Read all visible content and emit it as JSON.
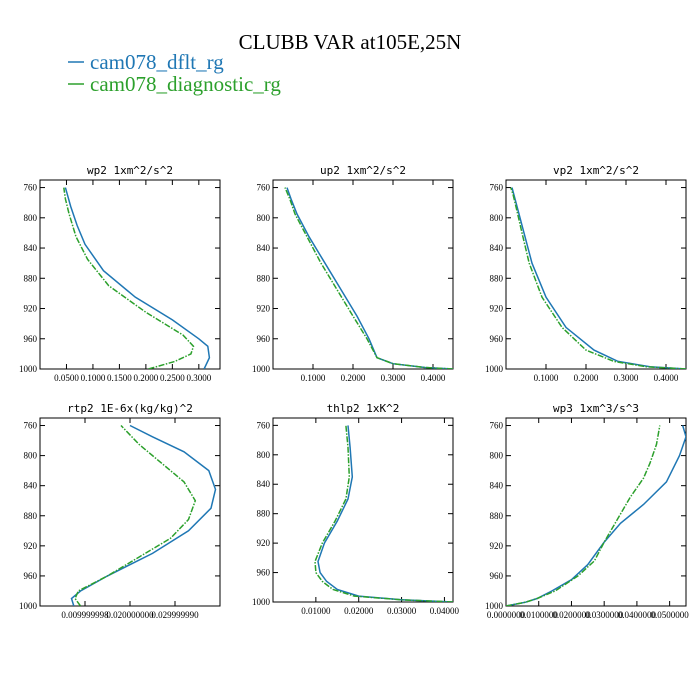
{
  "figure": {
    "title": "CLUBB VAR at105E,25N",
    "legend": [
      {
        "label": "cam078_dflt_rg",
        "color": "#1f77b4"
      },
      {
        "label": "cam078_diagnostic_rg",
        "color": "#2ca02c"
      }
    ]
  },
  "chart_data": [
    {
      "type": "line",
      "title": "wp2  1xm^2/s^2",
      "xlim": [
        0.0,
        0.34
      ],
      "ylim": [
        1000,
        750
      ],
      "yticks": [
        1000,
        960,
        920,
        880,
        840,
        800,
        760
      ],
      "yticklabels": [
        "1000",
        "960",
        "920",
        "880",
        "840",
        "800",
        "760"
      ],
      "xticks": [
        0.05,
        0.1,
        0.15,
        0.2,
        0.25,
        0.3
      ],
      "xticklabels": [
        "0.0500",
        "0.1000",
        "0.1500",
        "0.2000",
        "0.2500",
        "0.3000"
      ],
      "series": [
        {
          "name": "cam078_dflt_rg",
          "color": "#1f77b4",
          "x": [
            0.31,
            0.32,
            0.317,
            0.3,
            0.25,
            0.18,
            0.12,
            0.085,
            0.07,
            0.058,
            0.052,
            0.048
          ],
          "y": [
            1000,
            985,
            970,
            960,
            935,
            905,
            870,
            835,
            810,
            785,
            770,
            760
          ]
        },
        {
          "name": "cam078_diagnostic_rg",
          "color": "#2ca02c",
          "x": [
            0.205,
            0.255,
            0.285,
            0.29,
            0.27,
            0.2,
            0.13,
            0.09,
            0.068,
            0.055,
            0.048,
            0.045
          ],
          "y": [
            1000,
            990,
            980,
            970,
            955,
            925,
            890,
            855,
            825,
            795,
            775,
            760
          ]
        }
      ]
    },
    {
      "type": "line",
      "title": "up2  1xm^2/s^2",
      "xlim": [
        0.0,
        0.45
      ],
      "ylim": [
        1000,
        750
      ],
      "yticks": [
        1000,
        960,
        920,
        880,
        840,
        800,
        760
      ],
      "yticklabels": [
        "1000",
        "960",
        "920",
        "880",
        "840",
        "800",
        "760"
      ],
      "xticks": [
        0.1,
        0.2,
        0.3,
        0.4
      ],
      "xticklabels": [
        "0.1000",
        "0.2000",
        "0.3000",
        "0.4000"
      ],
      "series": [
        {
          "name": "cam078_dflt_rg",
          "color": "#1f77b4",
          "x": [
            0.45,
            0.38,
            0.3,
            0.26,
            0.24,
            0.21,
            0.17,
            0.13,
            0.09,
            0.06,
            0.045,
            0.035
          ],
          "y": [
            1000,
            998,
            993,
            985,
            960,
            930,
            895,
            860,
            825,
            795,
            775,
            760
          ]
        },
        {
          "name": "cam078_diagnostic_rg",
          "color": "#2ca02c",
          "x": [
            0.45,
            0.38,
            0.3,
            0.26,
            0.235,
            0.2,
            0.16,
            0.12,
            0.085,
            0.055,
            0.042,
            0.03
          ],
          "y": [
            1000,
            998,
            993,
            985,
            960,
            930,
            895,
            860,
            825,
            795,
            775,
            760
          ]
        }
      ]
    },
    {
      "type": "line",
      "title": "vp2  1xm^2/s^2",
      "xlim": [
        0.0,
        0.45
      ],
      "ylim": [
        1000,
        750
      ],
      "yticks": [
        1000,
        960,
        920,
        880,
        840,
        800,
        760
      ],
      "yticklabels": [
        "1000",
        "960",
        "920",
        "880",
        "840",
        "800",
        "760"
      ],
      "xticks": [
        0.1,
        0.2,
        0.3,
        0.4
      ],
      "xticklabels": [
        "0.1000",
        "0.2000",
        "0.3000",
        "0.4000"
      ],
      "series": [
        {
          "name": "cam078_dflt_rg",
          "color": "#1f77b4",
          "x": [
            0.45,
            0.36,
            0.28,
            0.22,
            0.15,
            0.1,
            0.065,
            0.045,
            0.03,
            0.02,
            0.015
          ],
          "y": [
            1000,
            997,
            990,
            975,
            945,
            905,
            860,
            820,
            790,
            770,
            760
          ]
        },
        {
          "name": "cam078_diagnostic_rg",
          "color": "#2ca02c",
          "x": [
            0.45,
            0.35,
            0.27,
            0.2,
            0.14,
            0.09,
            0.058,
            0.04,
            0.027,
            0.018,
            0.012
          ],
          "y": [
            1000,
            997,
            990,
            975,
            945,
            905,
            860,
            820,
            790,
            770,
            760
          ]
        }
      ]
    },
    {
      "type": "line",
      "title": "rtp2  1E-6x(kg/kg)^2",
      "xlim": [
        0.0,
        0.04
      ],
      "ylim": [
        1000,
        750
      ],
      "yticks": [
        1000,
        960,
        920,
        880,
        840,
        800,
        760
      ],
      "yticklabels": [
        "1000",
        "960",
        "920",
        "880",
        "840",
        "800",
        "760"
      ],
      "xticks": [
        0.01,
        0.02,
        0.03
      ],
      "xticklabels": [
        "0.009999998",
        "0.020000000",
        "0.029999990"
      ],
      "series": [
        {
          "name": "cam078_dflt_rg",
          "color": "#1f77b4",
          "x": [
            0.0075,
            0.007,
            0.009,
            0.015,
            0.025,
            0.033,
            0.038,
            0.039,
            0.0375,
            0.032,
            0.025,
            0.02
          ],
          "y": [
            1000,
            990,
            980,
            960,
            930,
            900,
            870,
            845,
            820,
            795,
            775,
            760
          ]
        },
        {
          "name": "cam078_diagnostic_rg",
          "color": "#2ca02c",
          "x": [
            0.009,
            0.0078,
            0.0085,
            0.015,
            0.022,
            0.029,
            0.033,
            0.0345,
            0.032,
            0.027,
            0.022,
            0.018
          ],
          "y": [
            1000,
            990,
            980,
            960,
            935,
            910,
            885,
            860,
            835,
            810,
            785,
            760
          ]
        }
      ]
    },
    {
      "type": "line",
      "title": "thlp2  1xK^2",
      "xlim": [
        0.0,
        0.042
      ],
      "ylim": [
        1000,
        750
      ],
      "yticks": [
        1000,
        960,
        920,
        880,
        840,
        800,
        760
      ],
      "yticklabels": [
        "1000",
        "960",
        "920",
        "880",
        "840",
        "800",
        "760"
      ],
      "xticks": [
        0.01,
        0.02,
        0.03,
        0.04
      ],
      "xticklabels": [
        "0.01000",
        "0.02000",
        "0.03000",
        "0.04000"
      ],
      "series": [
        {
          "name": "cam078_dflt_rg",
          "color": "#1f77b4",
          "x": [
            0.042,
            0.03,
            0.02,
            0.015,
            0.0125,
            0.011,
            0.0105,
            0.012,
            0.015,
            0.0175,
            0.0185,
            0.018,
            0.0175
          ],
          "y": [
            1000,
            997,
            992,
            983,
            972,
            960,
            945,
            920,
            890,
            860,
            830,
            790,
            760
          ]
        },
        {
          "name": "cam078_diagnostic_rg",
          "color": "#2ca02c",
          "x": [
            0.042,
            0.03,
            0.019,
            0.014,
            0.0115,
            0.01,
            0.0098,
            0.0115,
            0.0145,
            0.017,
            0.0178,
            0.0175,
            0.017
          ],
          "y": [
            1000,
            997,
            992,
            983,
            972,
            960,
            945,
            920,
            890,
            860,
            830,
            790,
            760
          ]
        }
      ]
    },
    {
      "type": "line",
      "title": "wp3  1xm^3/s^3",
      "xlim": [
        0.0,
        0.055
      ],
      "ylim": [
        1000,
        750
      ],
      "yticks": [
        1000,
        960,
        920,
        880,
        840,
        800,
        760
      ],
      "yticklabels": [
        "1000",
        "960",
        "920",
        "880",
        "840",
        "800",
        "760"
      ],
      "xticks": [
        0.0,
        0.01,
        0.02,
        0.03,
        0.04,
        0.05
      ],
      "xticklabels": [
        "0.0000000",
        "0.0100000",
        "0.0200000",
        "0.0300000",
        "0.0400000",
        "0.0500000"
      ],
      "series": [
        {
          "name": "cam078_dflt_rg",
          "color": "#1f77b4",
          "x": [
            0.0,
            0.006,
            0.0095,
            0.014,
            0.02,
            0.025,
            0.03,
            0.035,
            0.042,
            0.049,
            0.053,
            0.055,
            0.054
          ],
          "y": [
            1000,
            995,
            990,
            980,
            965,
            945,
            915,
            890,
            865,
            835,
            800,
            775,
            760
          ]
        },
        {
          "name": "cam078_diagnostic_rg",
          "color": "#2ca02c",
          "x": [
            0.0,
            0.006,
            0.0095,
            0.015,
            0.022,
            0.027,
            0.03,
            0.034,
            0.038,
            0.042,
            0.044,
            0.046,
            0.047
          ],
          "y": [
            1000,
            995,
            990,
            980,
            960,
            940,
            915,
            885,
            855,
            830,
            810,
            785,
            760
          ]
        }
      ]
    }
  ]
}
